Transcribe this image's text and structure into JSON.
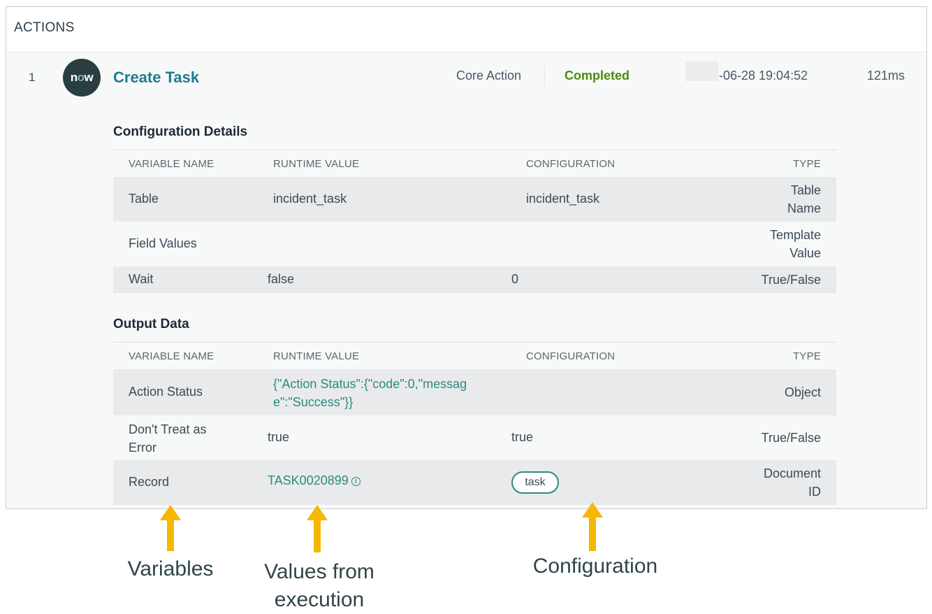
{
  "panel": {
    "title": "ACTIONS"
  },
  "action": {
    "index": "1",
    "logo_text_pre": "n",
    "logo_text_o": "o",
    "logo_text_post": "w",
    "name": "Create Task",
    "type": "Core Action",
    "status": "Completed",
    "timestamp": "-06-28 19:04:52",
    "duration": "121ms"
  },
  "config": {
    "title": "Configuration Details",
    "headers": {
      "variable": "VARIABLE NAME",
      "runtime": "RUNTIME VALUE",
      "configuration": "CONFIGURATION",
      "type": "TYPE"
    },
    "rows": [
      {
        "variable": "Table",
        "runtime": "incident_task",
        "configuration": "incident_task",
        "type_line1": "Table",
        "type_line2": "Name"
      },
      {
        "variable": "Field Values",
        "runtime": "",
        "configuration": "",
        "type_line1": "Template",
        "type_line2": "Value"
      },
      {
        "variable": "Wait",
        "runtime": "false",
        "configuration": "0",
        "type_line1": "True/False",
        "type_line2": ""
      }
    ]
  },
  "output": {
    "title": "Output Data",
    "headers": {
      "variable": "VARIABLE NAME",
      "runtime": "RUNTIME VALUE",
      "configuration": "CONFIGURATION",
      "type": "TYPE"
    },
    "rows": [
      {
        "variable_line1": "Action Status",
        "variable_line2": "",
        "runtime_line1": "{\"Action Status\":{\"code\":0,\"messag",
        "runtime_line2": "e\":\"Success\"}}",
        "configuration": "",
        "type_line1": "Object",
        "type_line2": ""
      },
      {
        "variable_line1": "Don't Treat as",
        "variable_line2": "Error",
        "runtime_line1": "true",
        "runtime_line2": "",
        "configuration": "true",
        "type_line1": "True/False",
        "type_line2": ""
      },
      {
        "variable_line1": "Record",
        "variable_line2": "",
        "runtime_line1": "TASK0020899",
        "runtime_line2": "",
        "configuration": "task",
        "type_line1": "Document",
        "type_line2": "ID"
      }
    ]
  },
  "annotations": {
    "variables": "Variables",
    "values_line1": "Values from",
    "values_line2": "execution",
    "configuration": "Configuration",
    "arrow_color": "#f5b700"
  },
  "colors": {
    "link": "#1f7b93",
    "status_completed": "#4f8a10",
    "logo_bg": "#293e40",
    "pill_border": "#2a8c7d"
  },
  "icons": {
    "info": "info-icon"
  }
}
